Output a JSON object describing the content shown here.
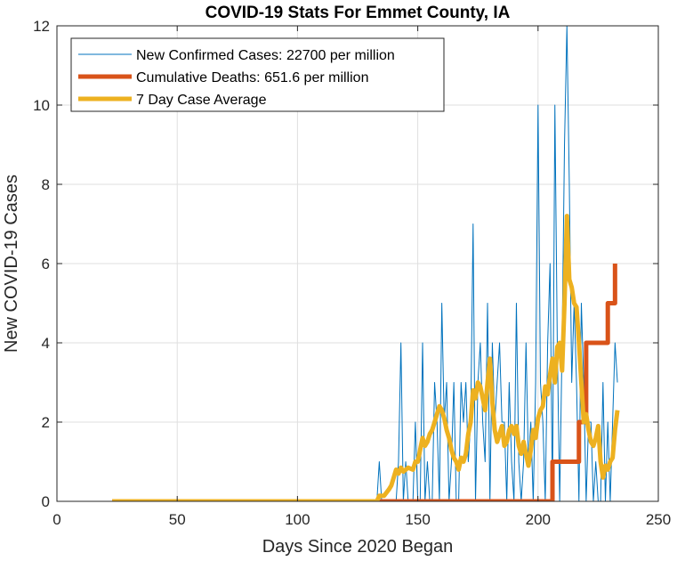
{
  "chart_data": {
    "type": "line",
    "title": "COVID-19 Stats For Emmet County, IA",
    "xlabel": "Days Since 2020 Began",
    "ylabel": "New COVID-19 Cases",
    "xlim": [
      0,
      250
    ],
    "ylim": [
      0,
      12
    ],
    "xticks": [
      0,
      50,
      100,
      150,
      200,
      250
    ],
    "yticks": [
      0,
      2,
      4,
      6,
      8,
      10,
      12
    ],
    "xtick_labels": [
      "0",
      "50",
      "100",
      "150",
      "200",
      "250"
    ],
    "ytick_labels": [
      "0",
      "2",
      "4",
      "6",
      "8",
      "10",
      "12"
    ],
    "grid": true,
    "legend_position": "top-left",
    "series": [
      {
        "name": "New Confirmed Cases: 22700 per million",
        "color": "#0072BD",
        "line_width": 1,
        "x": [
          23,
          133,
          134,
          135,
          136,
          137,
          138,
          139,
          140,
          141,
          142,
          143,
          144,
          145,
          146,
          147,
          148,
          149,
          150,
          151,
          152,
          153,
          154,
          155,
          156,
          157,
          158,
          159,
          160,
          161,
          162,
          163,
          164,
          165,
          166,
          167,
          168,
          169,
          170,
          171,
          172,
          173,
          174,
          175,
          176,
          177,
          178,
          179,
          180,
          181,
          182,
          183,
          184,
          185,
          186,
          187,
          188,
          189,
          190,
          191,
          192,
          193,
          194,
          195,
          196,
          197,
          198,
          199,
          200,
          201,
          202,
          203,
          204,
          205,
          206,
          207,
          208,
          209,
          210,
          211,
          212,
          213,
          214,
          215,
          216,
          217,
          218,
          219,
          220,
          221,
          222,
          223,
          224,
          225,
          226,
          227,
          228,
          229,
          230,
          231,
          232,
          233
        ],
        "values": [
          0,
          0,
          1,
          0,
          0,
          0,
          0,
          0,
          0,
          0,
          1,
          4,
          0,
          1,
          0,
          0,
          0,
          2,
          0,
          0,
          4,
          0,
          1,
          0,
          0,
          3,
          2,
          0,
          5,
          2,
          3,
          0,
          1,
          3,
          0,
          0,
          3,
          2,
          3,
          1,
          2,
          7,
          0,
          3,
          4,
          2,
          1,
          5,
          0,
          4,
          2,
          3,
          4,
          2,
          2,
          0,
          3,
          1,
          0,
          5,
          1,
          0,
          1,
          4,
          1,
          2,
          0,
          3,
          10,
          3,
          2,
          0,
          4,
          6,
          0,
          10,
          4,
          0,
          4,
          9,
          12,
          8,
          3,
          5,
          3,
          0,
          5,
          3,
          0,
          2,
          2,
          0,
          1,
          0,
          0,
          3,
          0,
          2,
          0,
          2,
          4,
          3
        ]
      },
      {
        "name": "Cumulative Deaths: 651.6 per million",
        "color": "#D95319",
        "line_width": 5,
        "x": [
          23,
          206,
          206,
          217,
          217,
          220,
          220,
          229,
          229,
          232,
          232
        ],
        "values": [
          0,
          0,
          1,
          1,
          2,
          2,
          4,
          4,
          5,
          5,
          6
        ]
      },
      {
        "name": "7 Day Case Average",
        "color": "#EDB120",
        "line_width": 5,
        "x": [
          23,
          133,
          134,
          136,
          138,
          139,
          140,
          141,
          142,
          143,
          144,
          146,
          148,
          149,
          150,
          151,
          152,
          153,
          154,
          155,
          156,
          157,
          158,
          159,
          160,
          161,
          162,
          163,
          164,
          165,
          166,
          167,
          168,
          169,
          170,
          171,
          172,
          173,
          174,
          175,
          176,
          177,
          178,
          179,
          180,
          181,
          182,
          183,
          184,
          185,
          186,
          187,
          188,
          189,
          190,
          191,
          192,
          193,
          194,
          195,
          196,
          197,
          198,
          199,
          200,
          201,
          202,
          203,
          204,
          205,
          206,
          207,
          208,
          209,
          210,
          211,
          212,
          213,
          214,
          215,
          216,
          217,
          218,
          219,
          220,
          221,
          222,
          223,
          224,
          225,
          226,
          227,
          228,
          229,
          230,
          231,
          232,
          233
        ],
        "values": [
          0,
          0,
          0.14,
          0.14,
          0.3,
          0.4,
          0.6,
          0.8,
          0.7,
          0.85,
          0.75,
          0.85,
          0.8,
          1.0,
          1.0,
          1.3,
          1.6,
          1.4,
          1.5,
          1.7,
          1.8,
          2.0,
          2.2,
          2.4,
          2.3,
          2.1,
          1.8,
          1.6,
          1.3,
          1.1,
          1.0,
          0.8,
          1.1,
          1.0,
          1.2,
          1.7,
          2.0,
          2.8,
          2.6,
          3.0,
          2.9,
          2.6,
          2.3,
          3.0,
          3.6,
          2.5,
          1.8,
          1.5,
          1.7,
          1.9,
          1.4,
          1.5,
          1.8,
          1.9,
          1.7,
          1.9,
          1.4,
          1.2,
          1.5,
          1.2,
          0.9,
          1.3,
          1.8,
          1.6,
          2.1,
          2.3,
          2.4,
          2.9,
          2.7,
          3.2,
          3.6,
          3.0,
          3.9,
          4.0,
          3.3,
          5.0,
          7.2,
          5.6,
          5.4,
          5.0,
          4.9,
          4.0,
          3.0,
          2.0,
          2.2,
          1.8,
          1.5,
          1.4,
          1.6,
          1.9,
          1.0,
          0.6,
          0.9,
          0.8,
          1.0,
          1.1,
          1.8,
          2.3
        ]
      }
    ]
  }
}
